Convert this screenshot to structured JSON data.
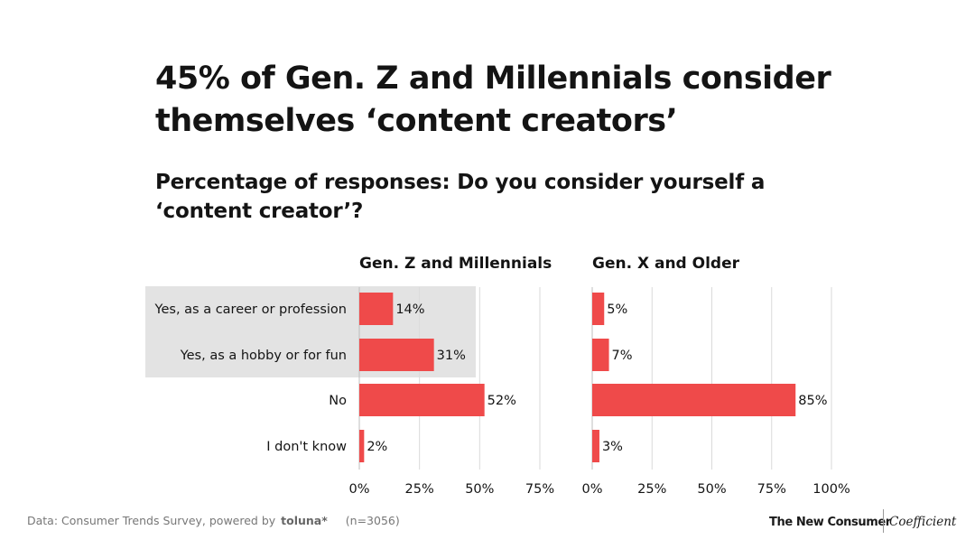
{
  "title": "45% of Gen. Z and Millennials consider themselves ‘content creators’",
  "subtitle": "Percentage of responses: Do you consider yourself a ‘content creator’?",
  "colors": {
    "bar": "#ef4a4a",
    "highlight": "#e3e3e3",
    "grid": "#dadada",
    "text": "#141414"
  },
  "chart_data": {
    "type": "bar",
    "orientation": "horizontal",
    "categories": [
      "Yes, as a career or profession",
      "Yes, as a hobby or for fun",
      "No",
      "I don't know"
    ],
    "highlighted_categories": [
      "Yes, as a career or profession",
      "Yes, as a hobby or for fun"
    ],
    "panels": [
      {
        "name": "Gen. Z and Millennials",
        "values": [
          14,
          31,
          52,
          2
        ],
        "value_labels": [
          "14%",
          "31%",
          "52%",
          "2%"
        ],
        "xlim": [
          0,
          75
        ],
        "ticks": [
          0,
          25,
          50,
          75
        ],
        "tick_labels": [
          "0%",
          "25%",
          "50%",
          "75%"
        ]
      },
      {
        "name": "Gen. X and Older",
        "values": [
          5,
          7,
          85,
          3
        ],
        "value_labels": [
          "5%",
          "7%",
          "85%",
          "3%"
        ],
        "xlim": [
          0,
          100
        ],
        "ticks": [
          0,
          25,
          50,
          75,
          100
        ],
        "tick_labels": [
          "0%",
          "25%",
          "50%",
          "75%",
          "100%"
        ]
      }
    ],
    "unit": "%"
  },
  "footer": {
    "source": "Data: Consumer Trends Survey, powered by",
    "source_logo": "toluna*",
    "sample": "(n=3056)",
    "brand_primary": "The New Consumer",
    "brand_secondary": "Coefficient"
  }
}
